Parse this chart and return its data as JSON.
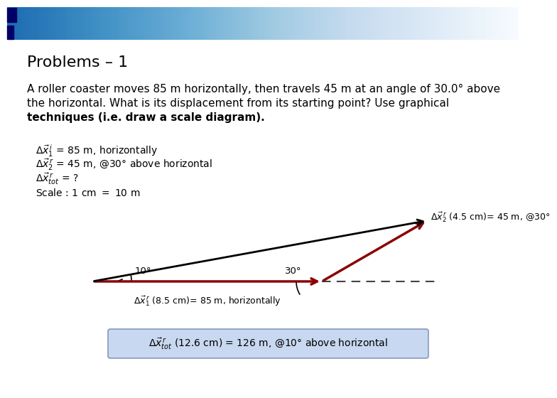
{
  "title": "Problems – 1",
  "title_fontsize": 16,
  "body_text_line1": "A roller coaster moves 85 m horizontally, then travels 45 m at an angle of 30.0° above",
  "body_text_line2": "the horizontal. What is its displacement from its starting point? Use graphical",
  "body_text_line3": "techniques (i.e. draw a scale diagram).",
  "body_fontsize": 11,
  "note1": "Δx̅¹₁ = 85 m, horizontally",
  "note2": "Δx̅ʳ₂ = 45 m, @30° above horizontal",
  "note3": "Δx̅ʳₜₒₜ = ?",
  "note4": "Scale : 1 cm – 10 m",
  "notes_fontsize": 10,
  "bg_color": "#ffffff",
  "header_dark": "#000066",
  "header_light": "#dde0ee",
  "arrow_red": "#8B0000",
  "arrow_black": "#000000",
  "dash_color": "#444444",
  "box_fill": "#c8d8f0",
  "box_edge": "#8899bb",
  "label1": "Δx̅ʳ₁ (8.5 cm)= 85 m, horizontally",
  "label2": "Δx̅ʳ₂ (4.5 cm)= 45 m, @30°",
  "label_tot": "Δx̅ʳₜₒₜ (12.6 cm)= 126 m, @10° above horizontal",
  "angle_arc_label_10": "10°",
  "angle_arc_label_30": "30°"
}
